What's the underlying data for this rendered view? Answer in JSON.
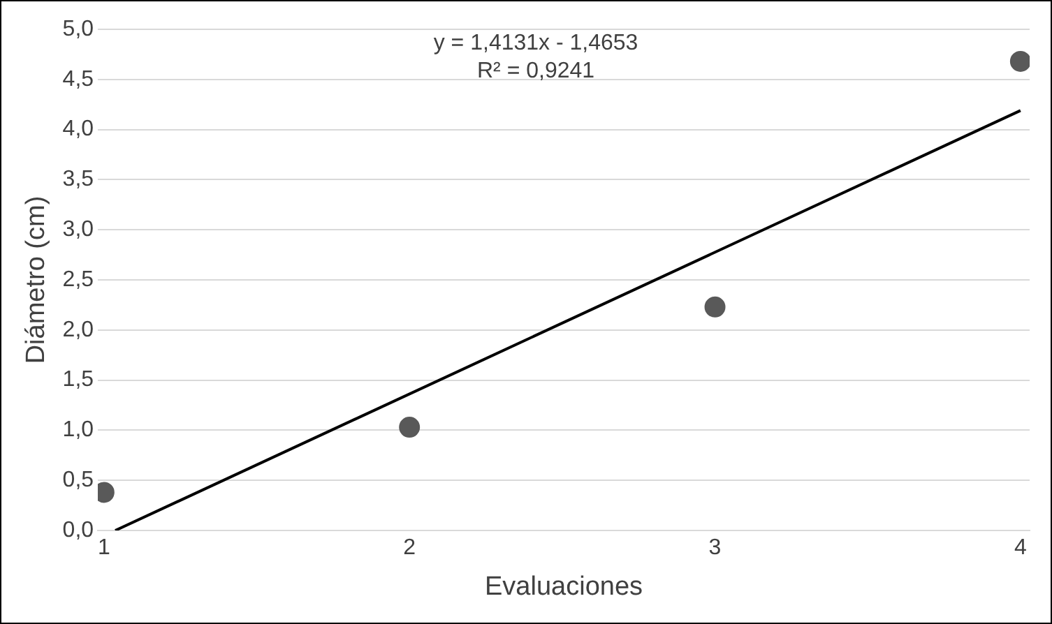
{
  "chart_data": {
    "type": "scatter",
    "xlabel": "Evaluaciones",
    "ylabel": "Diámetro (cm)",
    "x": [
      1,
      2,
      3,
      4
    ],
    "series": [
      {
        "type": "scatter",
        "color": "#595959",
        "values": [
          0.38,
          1.03,
          2.23,
          4.68
        ],
        "marker": "circle"
      },
      {
        "type": "line",
        "color": "#000000",
        "x": [
          1.037,
          4
        ],
        "values": [
          0,
          4.19
        ],
        "marker": "none",
        "line_style": "solid"
      }
    ],
    "xlim": [
      0.98,
      4.03
    ],
    "xticks": [
      1,
      2,
      3,
      4
    ],
    "ylim": [
      0,
      5
    ],
    "yticks": [
      {
        "value": 0,
        "label": "0,0"
      },
      {
        "value": 0.5,
        "label": "0,5"
      },
      {
        "value": 1,
        "label": "1,0"
      },
      {
        "value": 1.5,
        "label": "1,5"
      },
      {
        "value": 2,
        "label": "2,0"
      },
      {
        "value": 2.5,
        "label": "2,5"
      },
      {
        "value": 3,
        "label": "3,0"
      },
      {
        "value": 3.5,
        "label": "3,5"
      },
      {
        "value": 4,
        "label": "4,0"
      },
      {
        "value": 4.5,
        "label": "4,5"
      },
      {
        "value": 5,
        "label": "5,0"
      }
    ],
    "grid": "y",
    "legend": false,
    "annotations": [
      "y = 1,4131x - 1,4653",
      "R² = 0,9241"
    ]
  }
}
